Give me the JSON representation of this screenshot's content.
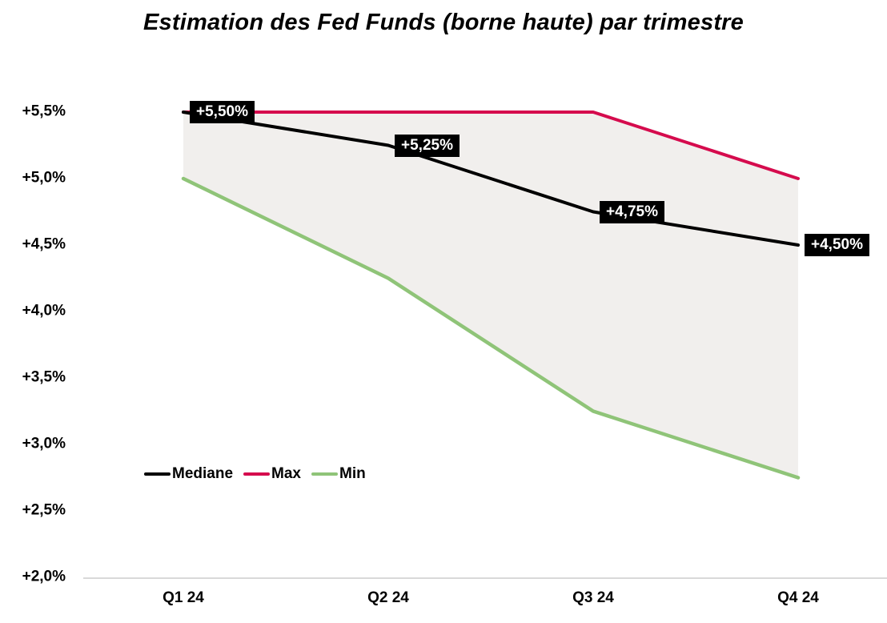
{
  "chart_data": {
    "type": "line",
    "title": "Estimation des Fed Funds (borne haute) par trimestre",
    "categories": [
      "Q1 24",
      "Q2 24",
      "Q3 24",
      "Q4 24"
    ],
    "series": [
      {
        "name": "Mediane",
        "color": "#000000",
        "values": [
          5.5,
          5.25,
          4.75,
          4.5
        ]
      },
      {
        "name": "Max",
        "color": "#d50b4d",
        "values": [
          5.5,
          5.5,
          5.5,
          5.0
        ]
      },
      {
        "name": "Min",
        "color": "#8fc478",
        "values": [
          5.0,
          4.25,
          3.25,
          2.75
        ]
      }
    ],
    "point_labels": [
      "+5,50%",
      "+5,25%",
      "+4,75%",
      "+4,50%"
    ],
    "point_labels_on_series": "Mediane",
    "ytick_labels": [
      "+5,5%",
      "+5,0%",
      "+4,5%",
      "+4,0%",
      "+3,5%",
      "+3,0%",
      "+2,5%",
      "+2,0%"
    ],
    "ytick_values": [
      5.5,
      5.0,
      4.5,
      4.0,
      3.5,
      3.0,
      2.5,
      2.0
    ],
    "ylim": [
      2.0,
      5.5
    ],
    "xlabel": "",
    "ylabel": "",
    "grid": false,
    "legend_entries": [
      "Mediane",
      "Max",
      "Min"
    ],
    "legend_position": "inside-lower-left",
    "band_fill": "#f1efed",
    "axis_line_color": "#d9d9d9",
    "label_box_bg": "#000000",
    "label_box_text_color": "#ffffff"
  }
}
